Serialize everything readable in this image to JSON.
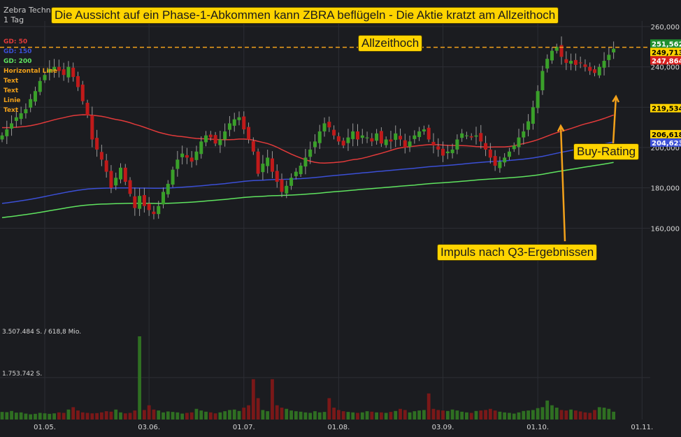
{
  "header": {
    "symbol": "Zebra Techn",
    "period": "1 Tag",
    "headline": "Die Aussicht auf ein Phase-1-Abkommen kann ZBRA beflügeln - Die Aktie kratzt am Allzeithoch"
  },
  "legend": [
    {
      "label": "GD: 50",
      "color": "#e23a3a"
    },
    {
      "label": "GD: 150",
      "color": "#3b4fd6"
    },
    {
      "label": "GD: 200",
      "color": "#5fe35f"
    },
    {
      "label": "Horizontal Line",
      "color": "#f2a11a"
    },
    {
      "label": "Text",
      "color": "#f2a11a"
    },
    {
      "label": "Text",
      "color": "#f2a11a"
    },
    {
      "label": "Linie",
      "color": "#f2a11a"
    },
    {
      "label": "Text",
      "color": "#f2a11a"
    }
  ],
  "annotations": {
    "allzeithoch": "Allzeithoch",
    "buy_rating": "Buy-Rating",
    "impuls": "Impuls nach Q3-Ergebnissen"
  },
  "volume_info": {
    "max_label": "3.507.484 S. / 618,8 Mio.",
    "mid_label": "1.753.742 S."
  },
  "colors": {
    "background": "#1b1c20",
    "up": "#3aa02a",
    "down": "#c01a1a",
    "ma50": "#e23a3a",
    "ma150": "#3b4fd6",
    "ma200": "#5fe35f",
    "line": "#f2a11a"
  },
  "chart_data": {
    "type": "candlestick",
    "y_axis_side": "right",
    "ylim": [
      158000,
      262000
    ],
    "y_ticks": [
      160000,
      180000,
      200000,
      220000,
      240000,
      260000
    ],
    "y_tick_labels": [
      "160,000",
      "180,000",
      "200,000",
      "220,000",
      "240,000",
      "260,000"
    ],
    "x_tick_labels": [
      "01.05.",
      "03.06.",
      "01.07.",
      "01.08.",
      "03.09.",
      "01.10.",
      "01.11."
    ],
    "x_tick_index": [
      9,
      31,
      51,
      71,
      93,
      113,
      135
    ],
    "horizontal_line": 249713,
    "price_tags": [
      {
        "label": "251,562",
        "value": 251562,
        "bg": "#1f8f2f",
        "fg": "#ffffff"
      },
      {
        "label": "249,713",
        "value": 249713,
        "bg": "#ffd400",
        "fg": "#000000"
      },
      {
        "label": "247,864",
        "value": 247864,
        "bg": "#d81f1f",
        "fg": "#ffffff"
      },
      {
        "label": "219,534",
        "value": 219534,
        "bg": "#ffd400",
        "fg": "#000000"
      },
      {
        "label": "206,618",
        "value": 206618,
        "bg": "#ffd400",
        "fg": "#000000"
      },
      {
        "label": "204,623",
        "value": 204623,
        "bg": "#3b4fd6",
        "fg": "#ffffff"
      }
    ],
    "close": [
      206000,
      209000,
      212000,
      215000,
      217000,
      219000,
      224000,
      228000,
      233000,
      236000,
      239000,
      240000,
      238000,
      236000,
      240000,
      235000,
      230000,
      223000,
      216000,
      204000,
      199000,
      194000,
      188000,
      180000,
      185000,
      190000,
      183000,
      177000,
      170000,
      176000,
      171000,
      169000,
      167000,
      171000,
      178000,
      182000,
      189000,
      194000,
      197000,
      195000,
      193000,
      198000,
      203000,
      206000,
      205000,
      202000,
      204000,
      208000,
      212000,
      214000,
      215000,
      209000,
      204000,
      198000,
      187000,
      192000,
      195000,
      188000,
      183000,
      178000,
      181000,
      185000,
      188000,
      191000,
      195000,
      199000,
      203000,
      208000,
      212000,
      210000,
      206000,
      203000,
      201000,
      205000,
      208000,
      204000,
      206000,
      205000,
      203000,
      207000,
      202000,
      204000,
      203000,
      207000,
      204000,
      200000,
      203000,
      206000,
      208000,
      209000,
      204000,
      201000,
      199000,
      196000,
      198000,
      199000,
      204000,
      207000,
      206000,
      205000,
      206000,
      203000,
      199000,
      195000,
      191000,
      193000,
      195000,
      198000,
      201000,
      205000,
      208000,
      213000,
      220000,
      228000,
      238000,
      244000,
      248000,
      250000,
      245000,
      242000,
      243000,
      241000,
      242000,
      240000,
      238000,
      237000,
      240000,
      243000,
      246000,
      249000
    ],
    "volume": [
      320000,
      310000,
      360000,
      290000,
      300000,
      250000,
      220000,
      240000,
      280000,
      260000,
      240000,
      260000,
      300000,
      280000,
      420000,
      520000,
      380000,
      300000,
      280000,
      260000,
      270000,
      300000,
      350000,
      330000,
      420000,
      300000,
      260000,
      280000,
      380000,
      3507484,
      400000,
      600000,
      420000,
      380000,
      300000,
      340000,
      320000,
      300000,
      250000,
      280000,
      300000,
      450000,
      380000,
      330000,
      300000,
      260000,
      300000,
      350000,
      400000,
      420000,
      360000,
      500000,
      600000,
      1700000,
      900000,
      400000,
      350000,
      1700000,
      600000,
      500000,
      450000,
      380000,
      350000,
      330000,
      300000,
      280000,
      350000,
      300000,
      320000,
      900000,
      500000,
      400000,
      350000,
      320000,
      300000,
      280000,
      300000,
      350000,
      330000,
      300000,
      300000,
      280000,
      320000,
      360000,
      450000,
      400000,
      300000,
      350000,
      380000,
      400000,
      1100000,
      450000,
      400000,
      380000,
      360000,
      420000,
      380000,
      330000,
      300000,
      280000,
      360000,
      380000,
      400000,
      450000,
      380000,
      330000,
      300000,
      280000,
      250000,
      300000,
      360000,
      380000,
      400000,
      480000,
      520000,
      800000,
      600000,
      500000,
      400000,
      380000,
      420000,
      380000,
      340000,
      300000,
      280000,
      400000,
      520000,
      500000,
      450000,
      330000
    ]
  }
}
